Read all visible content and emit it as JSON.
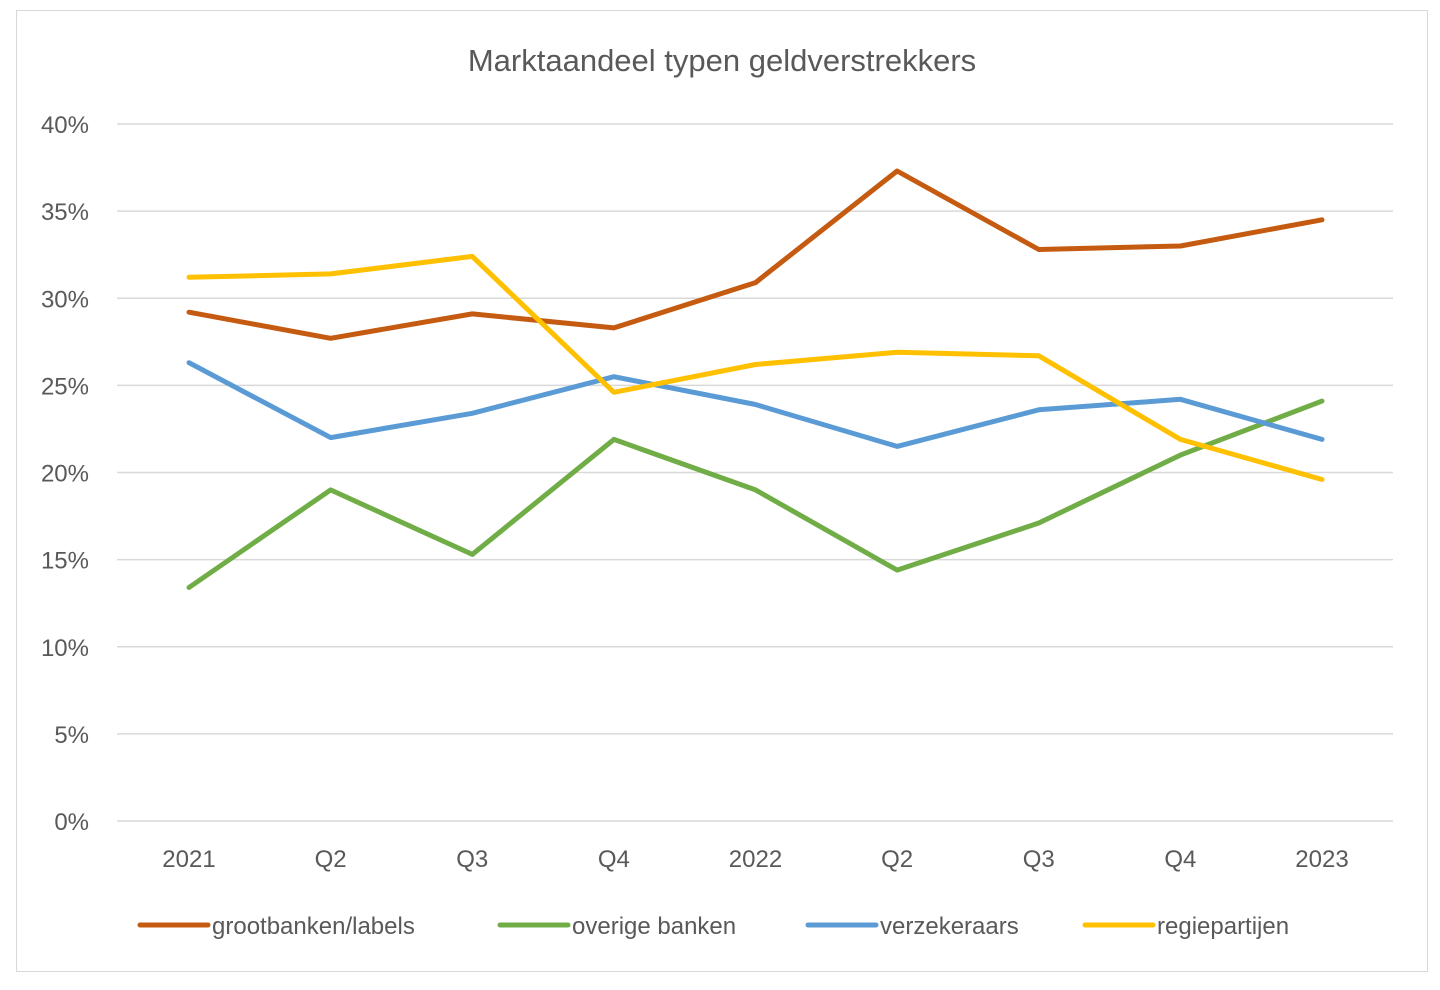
{
  "chart_data": {
    "type": "line",
    "title": "Marktaandeel typen geldverstrekkers",
    "xlabel": "",
    "ylabel": "",
    "categories": [
      "2021",
      "Q2",
      "Q3",
      "Q4",
      "2022",
      "Q2",
      "Q3",
      "Q4",
      "2023"
    ],
    "y_ticks": [
      "0%",
      "5%",
      "10%",
      "15%",
      "20%",
      "25%",
      "30%",
      "35%",
      "40%"
    ],
    "ylim": [
      0,
      40
    ],
    "y_unit": "%",
    "grid": true,
    "legend_position": "bottom",
    "series": [
      {
        "name": "grootbanken/labels",
        "color": "#C55A11",
        "values": [
          29.2,
          27.7,
          29.1,
          28.3,
          30.9,
          37.3,
          32.8,
          33.0,
          34.5
        ]
      },
      {
        "name": "overige banken",
        "color": "#70AD47",
        "values": [
          13.4,
          19.0,
          15.3,
          21.9,
          19.0,
          14.4,
          17.1,
          21.0,
          24.1
        ]
      },
      {
        "name": "verzekeraars",
        "color": "#5B9BD5",
        "values": [
          26.3,
          22.0,
          23.4,
          25.5,
          23.9,
          21.5,
          23.6,
          24.2,
          21.9
        ]
      },
      {
        "name": "regiepartijen",
        "color": "#FFC000",
        "values": [
          31.2,
          31.4,
          32.4,
          24.6,
          26.2,
          26.9,
          26.7,
          21.9,
          19.6
        ]
      }
    ]
  }
}
